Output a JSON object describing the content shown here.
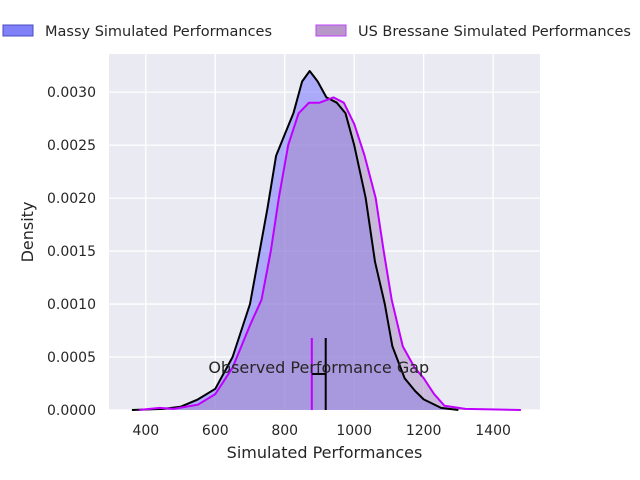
{
  "chart_data": {
    "type": "area",
    "title": "",
    "xlabel": "Simulated Performances",
    "ylabel": "Density",
    "xlim": [
      294,
      1535
    ],
    "ylim": [
      0,
      0.00336
    ],
    "xticks": [
      400,
      600,
      800,
      1000,
      1200,
      1400
    ],
    "xtick_labels": [
      "400",
      "600",
      "800",
      "1000",
      "1200",
      "1400"
    ],
    "yticks": [
      0,
      0.0005,
      0.001,
      0.0015,
      0.002,
      0.0025,
      0.003
    ],
    "ytick_labels": [
      "0.0000",
      "0.0005",
      "0.0010",
      "0.0015",
      "0.0020",
      "0.0025",
      "0.0030"
    ],
    "grid": true,
    "legend_position": "top",
    "series": [
      {
        "name": "Massy Simulated Performances",
        "line_color": "#000000",
        "fill_color": "#6a6aff",
        "x": [
          360,
          450,
          500,
          550,
          600,
          650,
          700,
          750,
          775,
          800,
          825,
          850,
          872,
          895,
          920,
          950,
          975,
          1000,
          1033,
          1060,
          1088,
          1110,
          1145,
          1175,
          1200,
          1250,
          1300
        ],
        "y": [
          0,
          1e-05,
          3e-05,
          0.0001,
          0.0002,
          0.0005,
          0.001,
          0.0019,
          0.0024,
          0.0026,
          0.0028,
          0.0031,
          0.0032,
          0.0031,
          0.00295,
          0.0029,
          0.0028,
          0.0025,
          0.002,
          0.0014,
          0.001,
          0.0006,
          0.0003,
          0.00018,
          0.0001,
          2e-05,
          0
        ]
      },
      {
        "name": "US Bressane Simulated Performances",
        "line_color": "#bf00ff",
        "fill_color": "#a685c2",
        "x": [
          380,
          440,
          480,
          550,
          600,
          650,
          700,
          733,
          760,
          783,
          810,
          840,
          870,
          900,
          940,
          970,
          1000,
          1030,
          1062,
          1085,
          1108,
          1140,
          1174,
          1200,
          1230,
          1260,
          1320,
          1480
        ],
        "y": [
          0,
          2e-05,
          1e-05,
          5e-05,
          0.00015,
          0.0004,
          0.0008,
          0.00104,
          0.0015,
          0.002,
          0.0025,
          0.0028,
          0.0029,
          0.0029,
          0.00295,
          0.0029,
          0.0027,
          0.0024,
          0.002,
          0.0015,
          0.00104,
          0.0006,
          0.0004,
          0.0003,
          0.00015,
          4e-05,
          1e-05,
          0
        ]
      }
    ],
    "annotations": [
      {
        "text": "Observed Performance Gap",
        "observed_bressane": 878,
        "observed_massy": 918,
        "marker_height": 0.00068,
        "gap_bar_y": 0.00034
      }
    ]
  }
}
